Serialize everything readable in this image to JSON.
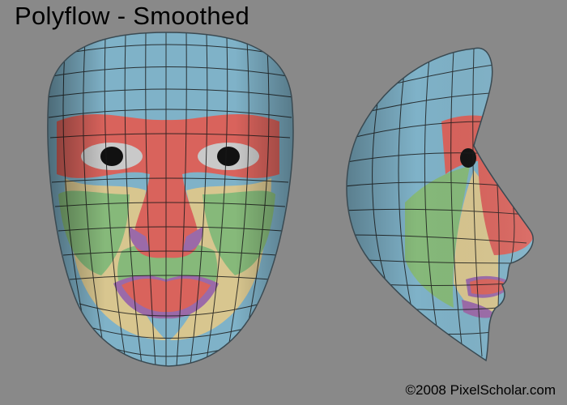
{
  "title": "Polyflow - Smoothed",
  "credit": "©2008 PixelScholar.com",
  "colors": {
    "background": "#898989",
    "forehead_blue": "#7fb2c8",
    "brow_red": "#d9635c",
    "cheek_yellow": "#d8c68f",
    "cheek_green": "#86b97a",
    "lip_purple": "#9b6aa8",
    "wire": "#1a1a1a"
  }
}
